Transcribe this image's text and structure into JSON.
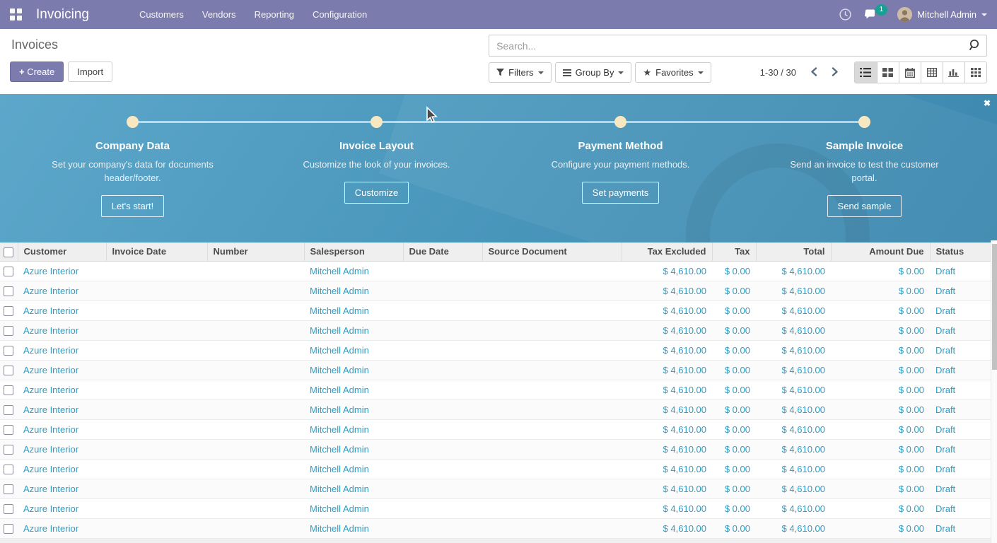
{
  "nav": {
    "app_name": "Invoicing",
    "menus": [
      "Customers",
      "Vendors",
      "Reporting",
      "Configuration"
    ],
    "messages_badge": "1",
    "user_name": "Mitchell Admin"
  },
  "page": {
    "title": "Invoices",
    "create_label": "Create",
    "import_label": "Import"
  },
  "search": {
    "placeholder": "Search..."
  },
  "controls": {
    "filters_label": "Filters",
    "group_by_label": "Group By",
    "favorites_label": "Favorites",
    "pager_text": "1-30 / 30"
  },
  "onboarding": {
    "steps": [
      {
        "title": "Company Data",
        "description": "Set your company's data for documents header/footer.",
        "button": "Let's start!"
      },
      {
        "title": "Invoice Layout",
        "description": "Customize the look of your invoices.",
        "button": "Customize"
      },
      {
        "title": "Payment Method",
        "description": "Configure your payment methods.",
        "button": "Set payments"
      },
      {
        "title": "Sample Invoice",
        "description": "Send an invoice to test the customer portal.",
        "button": "Send sample"
      }
    ],
    "close_label": "✖"
  },
  "table": {
    "column_keys": [
      "customer",
      "invoice_date",
      "number",
      "salesperson",
      "due_date",
      "source_document",
      "tax_excluded",
      "tax",
      "total",
      "amount_due",
      "status"
    ],
    "columns": [
      {
        "key": "customer",
        "label": "Customer",
        "align": "left"
      },
      {
        "key": "invoice_date",
        "label": "Invoice Date",
        "align": "left"
      },
      {
        "key": "number",
        "label": "Number",
        "align": "left"
      },
      {
        "key": "salesperson",
        "label": "Salesperson",
        "align": "left"
      },
      {
        "key": "due_date",
        "label": "Due Date",
        "align": "left"
      },
      {
        "key": "source_document",
        "label": "Source Document",
        "align": "left"
      },
      {
        "key": "tax_excluded",
        "label": "Tax Excluded",
        "align": "right"
      },
      {
        "key": "tax",
        "label": "Tax",
        "align": "right"
      },
      {
        "key": "total",
        "label": "Total",
        "align": "right"
      },
      {
        "key": "amount_due",
        "label": "Amount Due",
        "align": "right"
      },
      {
        "key": "status",
        "label": "Status",
        "align": "left"
      }
    ],
    "rows": [
      {
        "customer": "Azure Interior",
        "invoice_date": "",
        "number": "",
        "salesperson": "Mitchell Admin",
        "due_date": "",
        "source_document": "",
        "tax_excluded": "$ 4,610.00",
        "tax": "$ 0.00",
        "total": "$ 4,610.00",
        "amount_due": "$ 0.00",
        "status": "Draft"
      },
      {
        "customer": "Azure Interior",
        "invoice_date": "",
        "number": "",
        "salesperson": "Mitchell Admin",
        "due_date": "",
        "source_document": "",
        "tax_excluded": "$ 4,610.00",
        "tax": "$ 0.00",
        "total": "$ 4,610.00",
        "amount_due": "$ 0.00",
        "status": "Draft"
      },
      {
        "customer": "Azure Interior",
        "invoice_date": "",
        "number": "",
        "salesperson": "Mitchell Admin",
        "due_date": "",
        "source_document": "",
        "tax_excluded": "$ 4,610.00",
        "tax": "$ 0.00",
        "total": "$ 4,610.00",
        "amount_due": "$ 0.00",
        "status": "Draft"
      },
      {
        "customer": "Azure Interior",
        "invoice_date": "",
        "number": "",
        "salesperson": "Mitchell Admin",
        "due_date": "",
        "source_document": "",
        "tax_excluded": "$ 4,610.00",
        "tax": "$ 0.00",
        "total": "$ 4,610.00",
        "amount_due": "$ 0.00",
        "status": "Draft"
      },
      {
        "customer": "Azure Interior",
        "invoice_date": "",
        "number": "",
        "salesperson": "Mitchell Admin",
        "due_date": "",
        "source_document": "",
        "tax_excluded": "$ 4,610.00",
        "tax": "$ 0.00",
        "total": "$ 4,610.00",
        "amount_due": "$ 0.00",
        "status": "Draft"
      },
      {
        "customer": "Azure Interior",
        "invoice_date": "",
        "number": "",
        "salesperson": "Mitchell Admin",
        "due_date": "",
        "source_document": "",
        "tax_excluded": "$ 4,610.00",
        "tax": "$ 0.00",
        "total": "$ 4,610.00",
        "amount_due": "$ 0.00",
        "status": "Draft"
      },
      {
        "customer": "Azure Interior",
        "invoice_date": "",
        "number": "",
        "salesperson": "Mitchell Admin",
        "due_date": "",
        "source_document": "",
        "tax_excluded": "$ 4,610.00",
        "tax": "$ 0.00",
        "total": "$ 4,610.00",
        "amount_due": "$ 0.00",
        "status": "Draft"
      },
      {
        "customer": "Azure Interior",
        "invoice_date": "",
        "number": "",
        "salesperson": "Mitchell Admin",
        "due_date": "",
        "source_document": "",
        "tax_excluded": "$ 4,610.00",
        "tax": "$ 0.00",
        "total": "$ 4,610.00",
        "amount_due": "$ 0.00",
        "status": "Draft"
      },
      {
        "customer": "Azure Interior",
        "invoice_date": "",
        "number": "",
        "salesperson": "Mitchell Admin",
        "due_date": "",
        "source_document": "",
        "tax_excluded": "$ 4,610.00",
        "tax": "$ 0.00",
        "total": "$ 4,610.00",
        "amount_due": "$ 0.00",
        "status": "Draft"
      },
      {
        "customer": "Azure Interior",
        "invoice_date": "",
        "number": "",
        "salesperson": "Mitchell Admin",
        "due_date": "",
        "source_document": "",
        "tax_excluded": "$ 4,610.00",
        "tax": "$ 0.00",
        "total": "$ 4,610.00",
        "amount_due": "$ 0.00",
        "status": "Draft"
      },
      {
        "customer": "Azure Interior",
        "invoice_date": "",
        "number": "",
        "salesperson": "Mitchell Admin",
        "due_date": "",
        "source_document": "",
        "tax_excluded": "$ 4,610.00",
        "tax": "$ 0.00",
        "total": "$ 4,610.00",
        "amount_due": "$ 0.00",
        "status": "Draft"
      },
      {
        "customer": "Azure Interior",
        "invoice_date": "",
        "number": "",
        "salesperson": "Mitchell Admin",
        "due_date": "",
        "source_document": "",
        "tax_excluded": "$ 4,610.00",
        "tax": "$ 0.00",
        "total": "$ 4,610.00",
        "amount_due": "$ 0.00",
        "status": "Draft"
      },
      {
        "customer": "Azure Interior",
        "invoice_date": "",
        "number": "",
        "salesperson": "Mitchell Admin",
        "due_date": "",
        "source_document": "",
        "tax_excluded": "$ 4,610.00",
        "tax": "$ 0.00",
        "total": "$ 4,610.00",
        "amount_due": "$ 0.00",
        "status": "Draft"
      },
      {
        "customer": "Azure Interior",
        "invoice_date": "",
        "number": "",
        "salesperson": "Mitchell Admin",
        "due_date": "",
        "source_document": "",
        "tax_excluded": "$ 4,610.00",
        "tax": "$ 0.00",
        "total": "$ 4,610.00",
        "amount_due": "$ 0.00",
        "status": "Draft"
      }
    ]
  },
  "colors": {
    "navbar": "#7c7bad",
    "accent": "#7c7bad",
    "link": "#2c9dc4",
    "badge": "#17a093",
    "banner_top": "#5ca7ca",
    "banner_bottom": "#3c87ae",
    "dot": "#f7e8c2"
  }
}
